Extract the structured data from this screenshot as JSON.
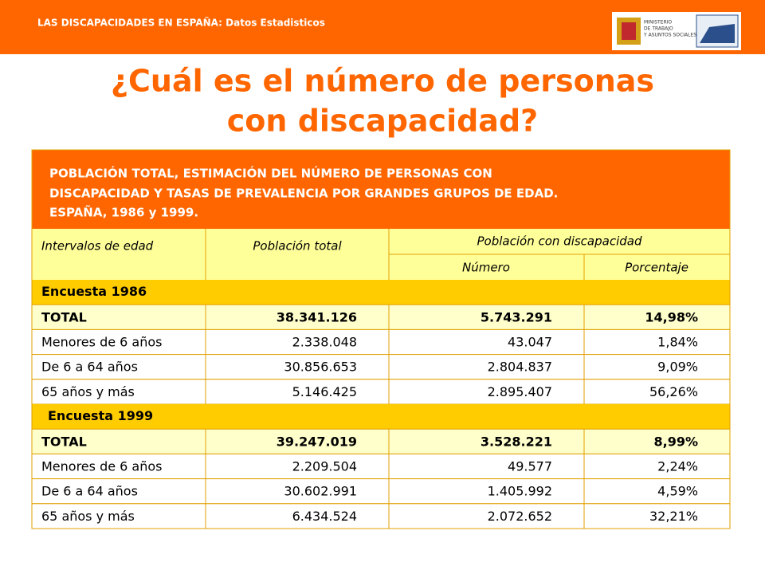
{
  "header": {
    "title": "LAS DISCAPACIDADES EN ESPAÑA: Datos Estadisticos",
    "logo_lines": [
      "MINISTERIO",
      "DE TRABAJO",
      "Y ASUNTOS SOCIALES"
    ]
  },
  "title_lines": [
    "¿Cuál es el número de personas",
    "con discapacidad?"
  ],
  "table": {
    "caption_lines": [
      "POBLACIÓN TOTAL, ESTIMACIÓN DEL NÚMERO DE PERSONAS CON",
      "DISCAPACIDAD Y TASAS DE PREVALENCIA POR GRANDES GRUPOS DE EDAD.",
      "ESPAÑA, 1986 y 1999."
    ],
    "columns": [
      "Intervalos de edad",
      "Población total",
      "Población con discapacidad"
    ],
    "subcolumns": [
      "Número",
      "Porcentaje"
    ],
    "sections": [
      {
        "name": "Encuesta 1986",
        "rows": [
          [
            "TOTAL",
            "38.341.126",
            "5.743.291",
            "14,98%"
          ],
          [
            "Menores de 6 años",
            "2.338.048",
            "43.047",
            "1,84%"
          ],
          [
            "De 6 a 64 años",
            "30.856.653",
            "2.804.837",
            "9,09%"
          ],
          [
            "65 años y más",
            "5.146.425",
            "2.895.407",
            "56,26%"
          ]
        ]
      },
      {
        "name": "Encuesta 1999",
        "rows": [
          [
            "TOTAL",
            "39.247.019",
            "3.528.221",
            "8,99%"
          ],
          [
            "Menores de 6 años",
            "2.209.504",
            "49.577",
            "2,24%"
          ],
          [
            "De 6 a 64 años",
            "30.602.991",
            "1.405.992",
            "4,59%"
          ],
          [
            "65 años y más",
            "6.434.524",
            "2.072.652",
            "32,21%"
          ]
        ]
      }
    ]
  }
}
